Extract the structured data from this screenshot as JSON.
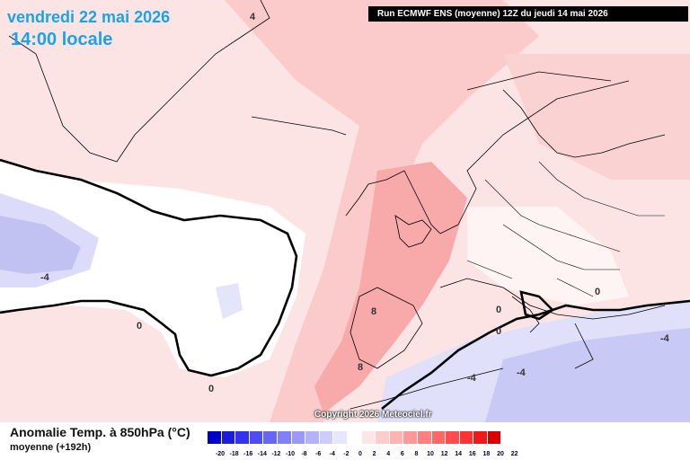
{
  "header": {
    "date": "vendredi 22 mai 2026",
    "time": "14:00 locale",
    "run": "Run ECMWF ENS (moyenne) 12Z du jeudi 14 mai 2026"
  },
  "footer": {
    "title": "Anomalie Temp. à 850hPa (°C)",
    "subtitle": "moyenne   (+192h)",
    "copyright": "Copyright 2026 Meteociel.fr"
  },
  "legend": {
    "labels": [
      "-20",
      "-18",
      "-16",
      "-14",
      "-12",
      "-10",
      "-8",
      "-6",
      "-4",
      "-2",
      "0",
      "2",
      "4",
      "6",
      "8",
      "10",
      "12",
      "14",
      "16",
      "18",
      "20",
      "22"
    ],
    "colors": [
      "#0000cc",
      "#1a1ae0",
      "#3333ee",
      "#4d4df2",
      "#6666f5",
      "#8080f8",
      "#9999fa",
      "#b3b3fc",
      "#ccccfd",
      "#e6e6fe",
      "#ffffff",
      "#ffe6e6",
      "#ffcccc",
      "#ffb3b3",
      "#ff9999",
      "#ff8080",
      "#ff6666",
      "#ff4d4d",
      "#ff3333",
      "#ee1a1a",
      "#dd0000"
    ]
  },
  "isoline_labels": [
    {
      "text": "0"
    },
    {
      "text": "0"
    },
    {
      "text": "0"
    },
    {
      "text": "0"
    },
    {
      "text": "0"
    },
    {
      "text": "-4"
    },
    {
      "text": "-4"
    },
    {
      "text": "-4"
    },
    {
      "text": "-4"
    },
    {
      "text": "8"
    },
    {
      "text": "8"
    },
    {
      "text": "4"
    }
  ],
  "colors": {
    "title": "#1aa3e8",
    "base_warm": "#ffd9d9",
    "warm_strong": "#f9a6a6",
    "cool": "#d6d6ff",
    "cold": "#b8b8f5"
  }
}
